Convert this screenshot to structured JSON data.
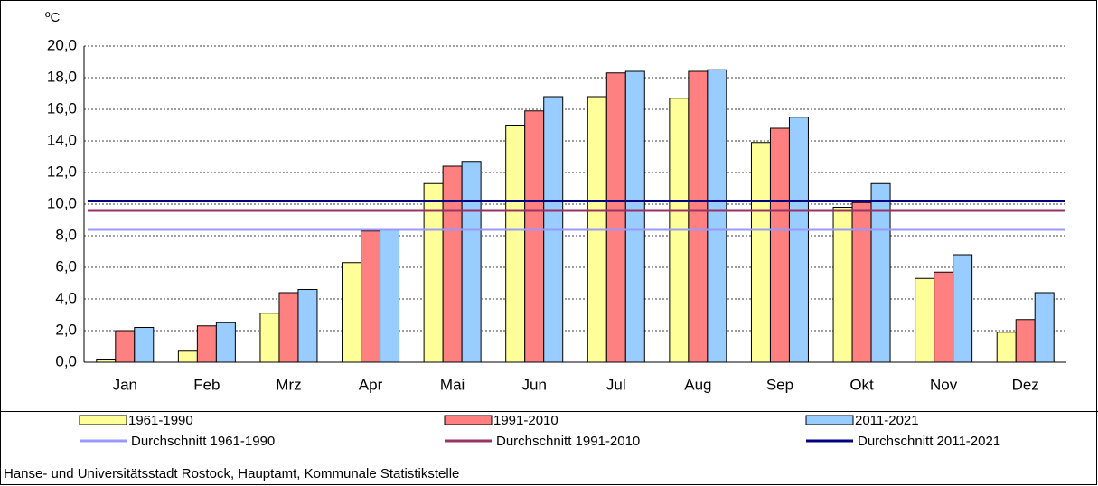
{
  "chart_data": {
    "type": "bar",
    "y_unit": "ºC",
    "categories": [
      "Jan",
      "Feb",
      "Mrz",
      "Apr",
      "Mai",
      "Jun",
      "Jul",
      "Aug",
      "Sep",
      "Okt",
      "Nov",
      "Dez"
    ],
    "series": [
      {
        "name": "1961-1990",
        "color": "#ffff99",
        "values": [
          0.2,
          0.7,
          3.1,
          6.3,
          11.3,
          15.0,
          16.8,
          16.7,
          13.9,
          9.8,
          5.3,
          1.9
        ]
      },
      {
        "name": "1991-2010",
        "color": "#ff8080",
        "values": [
          2.0,
          2.3,
          4.4,
          8.3,
          12.4,
          15.9,
          18.3,
          18.4,
          14.8,
          10.1,
          5.7,
          2.7
        ]
      },
      {
        "name": "2011-2021",
        "color": "#99ccff",
        "values": [
          2.2,
          2.5,
          4.6,
          8.4,
          12.7,
          16.8,
          18.4,
          18.5,
          15.5,
          11.3,
          6.8,
          4.4
        ]
      }
    ],
    "averages": [
      {
        "name": "Durchschnitt 1961-1990",
        "color": "#9999ff",
        "value": 8.4
      },
      {
        "name": "Durchschnitt 1991-2010",
        "color": "#993366",
        "value": 9.6
      },
      {
        "name": "Durchschnitt 2011-2021",
        "color": "#000080",
        "value": 10.2
      }
    ],
    "ylim": [
      0,
      20
    ],
    "yticks": [
      {
        "value": 0,
        "label": "0,0"
      },
      {
        "value": 2,
        "label": "2,0"
      },
      {
        "value": 4,
        "label": "4,0"
      },
      {
        "value": 6,
        "label": "6,0"
      },
      {
        "value": 8,
        "label": "8,0"
      },
      {
        "value": 10,
        "label": "10,0"
      },
      {
        "value": 12,
        "label": "12,0"
      },
      {
        "value": 14,
        "label": "14,0"
      },
      {
        "value": 16,
        "label": "16,0"
      },
      {
        "value": 18,
        "label": "18,0"
      },
      {
        "value": 20,
        "label": "20,0"
      }
    ],
    "grid": true,
    "source": "Hanse- und Universitätsstadt Rostock, Hauptamt, Kommunale Statistikstelle"
  }
}
